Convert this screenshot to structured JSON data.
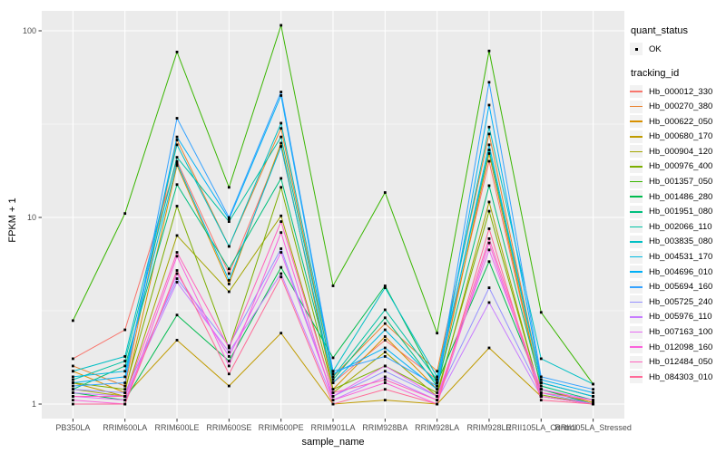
{
  "figure": {
    "panel_bg": "#EBEBEB",
    "grid_color": "#FFFFFF",
    "tick_color": "#333333",
    "axis_text_color": "#4D4D4D",
    "point_color": "#000000"
  },
  "legend": {
    "quant_status_title": "quant_status",
    "quant_items": [
      {
        "label": "OK",
        "marker": "point-icon"
      }
    ],
    "tracking_id_title": "tracking_id"
  },
  "chart_data": {
    "type": "line",
    "title": "",
    "xlabel": "sample_name",
    "ylabel": "FPKM + 1",
    "y_scale": "log10",
    "ylim": [
      0.93,
      128
    ],
    "y_ticks": [
      1,
      10,
      100
    ],
    "y_tick_labels": [
      "1",
      "10",
      "100"
    ],
    "y_minor_ticks": [
      3.1623,
      31.623
    ],
    "grid": true,
    "legend_position": "right",
    "marker": "black-square",
    "x_categories": [
      "PB350LA",
      "RRIM600LA",
      "RRIM600LE",
      "RRIM600SE",
      "RRIM600PE",
      "RRIM901LA",
      "RRIM928BA",
      "RRIM928LA",
      "RRIM928LE",
      "RRII105LA_Control",
      "RRII105LA_Stressed"
    ],
    "series": [
      {
        "name": "Hb_000012_330",
        "color": "#F8766D",
        "values": [
          1.75,
          2.5,
          20,
          5.0,
          24,
          1.3,
          2.2,
          1.35,
          20,
          1.2,
          1.02
        ]
      },
      {
        "name": "Hb_000270_380",
        "color": "#EA8331",
        "values": [
          1.6,
          1.25,
          26,
          7.0,
          30,
          1.4,
          2.7,
          1.5,
          28,
          1.3,
          1.1
        ]
      },
      {
        "name": "Hb_000622_050",
        "color": "#D89000",
        "values": [
          1.5,
          1.15,
          19,
          4.4,
          25,
          1.2,
          2.3,
          1.2,
          22,
          1.2,
          1.02
        ]
      },
      {
        "name": "Hb_000680_170",
        "color": "#C09B00",
        "values": [
          1.3,
          1.1,
          2.2,
          1.25,
          2.4,
          1.0,
          1.05,
          1.0,
          2.0,
          1.1,
          1.0
        ]
      },
      {
        "name": "Hb_000904_120",
        "color": "#A3A500",
        "values": [
          1.2,
          1.1,
          8.0,
          4.0,
          10.2,
          1.15,
          1.9,
          1.1,
          12.1,
          1.1,
          1.0
        ]
      },
      {
        "name": "Hb_000976_400",
        "color": "#7CAE00",
        "values": [
          1.3,
          1.2,
          11.5,
          2.0,
          14.5,
          1.2,
          1.6,
          1.15,
          10.8,
          1.12,
          1.0
        ]
      },
      {
        "name": "Hb_001357_050",
        "color": "#39B600",
        "values": [
          2.8,
          10.5,
          77,
          14.5,
          107,
          4.3,
          13.6,
          2.4,
          78,
          3.1,
          1.28
        ]
      },
      {
        "name": "Hb_001486_280",
        "color": "#00BB4E",
        "values": [
          1.15,
          1.05,
          3.0,
          1.7,
          5.4,
          1.77,
          4.3,
          1.3,
          5.8,
          1.2,
          1.0
        ]
      },
      {
        "name": "Hb_001951_080",
        "color": "#00BF7D",
        "values": [
          1.2,
          1.6,
          15,
          5.3,
          16.2,
          1.35,
          2.9,
          1.25,
          14.8,
          1.25,
          1.05
        ]
      },
      {
        "name": "Hb_002066_110",
        "color": "#00C1A3",
        "values": [
          1.35,
          1.7,
          21,
          9.5,
          27,
          1.4,
          3.2,
          1.35,
          23,
          1.3,
          1.1
        ]
      },
      {
        "name": "Hb_003835_080",
        "color": "#00BFC4",
        "values": [
          1.5,
          1.8,
          24.5,
          7.0,
          32,
          1.5,
          4.2,
          1.4,
          30.5,
          1.75,
          1.28
        ]
      },
      {
        "name": "Hb_004531_170",
        "color": "#00BAE0",
        "values": [
          1.4,
          1.5,
          19.5,
          4.6,
          24,
          1.3,
          2.5,
          1.3,
          24.5,
          1.3,
          1.1
        ]
      },
      {
        "name": "Hb_004696_010",
        "color": "#00B0F6",
        "values": [
          1.3,
          1.4,
          27,
          9.8,
          45,
          1.45,
          2.0,
          1.2,
          40,
          1.35,
          1.15
        ]
      },
      {
        "name": "Hb_005694_160",
        "color": "#35A2FF",
        "values": [
          1.25,
          1.3,
          34,
          10.0,
          47,
          1.5,
          1.8,
          1.25,
          53,
          1.4,
          1.2
        ]
      },
      {
        "name": "Hb_005725_240",
        "color": "#9590FF",
        "values": [
          1.2,
          1.15,
          4.7,
          2.05,
          6.8,
          1.1,
          1.5,
          1.1,
          4.2,
          1.15,
          1.0
        ]
      },
      {
        "name": "Hb_005976_110",
        "color": "#C77CFF",
        "values": [
          1.15,
          1.1,
          4.5,
          1.9,
          5.0,
          1.05,
          1.4,
          1.05,
          3.5,
          1.1,
          1.0
        ]
      },
      {
        "name": "Hb_007163_100",
        "color": "#E76BF3",
        "values": [
          1.1,
          1.05,
          5.0,
          1.8,
          6.5,
          1.1,
          1.6,
          1.1,
          6.7,
          1.2,
          1.05
        ]
      },
      {
        "name": "Hb_012098_160",
        "color": "#FA62DB",
        "values": [
          1.05,
          1.0,
          6.2,
          1.6,
          8.3,
          1.05,
          1.3,
          1.0,
          7.3,
          1.1,
          1.0
        ]
      },
      {
        "name": "Hb_012484_050",
        "color": "#FF62BC",
        "values": [
          1.1,
          1.1,
          6.5,
          2.0,
          9.5,
          1.15,
          1.35,
          1.05,
          7.7,
          1.15,
          1.05
        ]
      },
      {
        "name": "Hb_084303_010",
        "color": "#FF6A98",
        "values": [
          1.0,
          1.0,
          5.2,
          1.45,
          4.8,
          1.0,
          1.2,
          1.0,
          8.7,
          1.05,
          1.0
        ]
      }
    ]
  }
}
